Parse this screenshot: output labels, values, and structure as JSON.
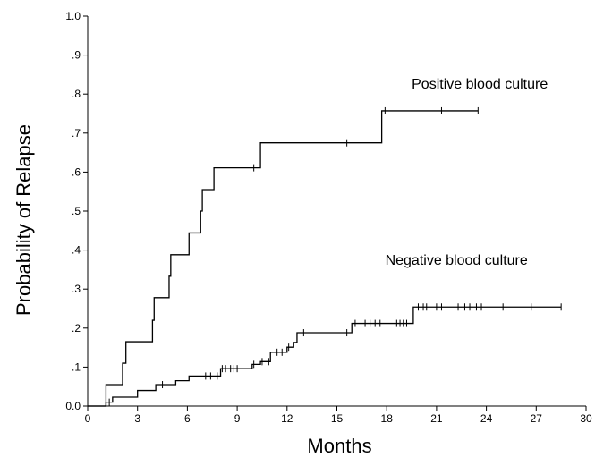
{
  "chart_data": {
    "type": "line",
    "step": true,
    "xlabel": "Months",
    "ylabel": "Probability of Relapse",
    "xlim": [
      0,
      30
    ],
    "ylim": [
      0,
      1.0
    ],
    "xticks": [
      0,
      3,
      6,
      9,
      12,
      15,
      18,
      21,
      24,
      27,
      30
    ],
    "xtick_labels": [
      "0",
      "3",
      "6",
      "9",
      "12",
      "15",
      "18",
      "21",
      "24",
      "27",
      "30"
    ],
    "yticks": [
      0,
      0.1,
      0.2,
      0.3,
      0.4,
      0.5,
      0.6,
      0.7,
      0.8,
      0.9,
      1.0
    ],
    "ytick_labels": [
      "0.0",
      ".1",
      ".2",
      ".3",
      ".4",
      ".5",
      ".6",
      ".7",
      ".8",
      ".9",
      "1.0"
    ],
    "grid": false,
    "legend": "none",
    "series": [
      {
        "label": "Positive blood culture",
        "steps": [
          [
            0,
            0
          ],
          [
            1.1,
            0.055
          ],
          [
            2.1,
            0.11
          ],
          [
            2.3,
            0.165
          ],
          [
            3.9,
            0.22
          ],
          [
            4.0,
            0.278
          ],
          [
            4.9,
            0.333
          ],
          [
            5.0,
            0.388
          ],
          [
            6.1,
            0.444
          ],
          [
            6.8,
            0.5
          ],
          [
            6.9,
            0.555
          ],
          [
            7.6,
            0.611
          ],
          [
            10.4,
            0.675
          ],
          [
            17.7,
            0.757
          ]
        ],
        "end_x": 23.5,
        "censored_x": [
          10.0,
          15.6,
          17.9,
          21.3,
          23.5
        ],
        "label_position": "upper-right"
      },
      {
        "label": "Negative blood culture",
        "steps": [
          [
            0,
            0
          ],
          [
            1.1,
            0.01
          ],
          [
            1.5,
            0.023
          ],
          [
            3.0,
            0.04
          ],
          [
            4.1,
            0.055
          ],
          [
            5.3,
            0.065
          ],
          [
            6.1,
            0.077
          ],
          [
            8.0,
            0.096
          ],
          [
            9.9,
            0.107
          ],
          [
            10.4,
            0.114
          ],
          [
            11.0,
            0.138
          ],
          [
            12.0,
            0.151
          ],
          [
            12.4,
            0.163
          ],
          [
            12.6,
            0.188
          ],
          [
            15.9,
            0.212
          ],
          [
            19.6,
            0.254
          ]
        ],
        "end_x": 28.5,
        "censored_x": [
          1.3,
          4.5,
          7.1,
          7.4,
          7.8,
          8.1,
          8.3,
          8.6,
          8.8,
          9.0,
          10.0,
          10.5,
          10.9,
          11.4,
          11.7,
          12.1,
          13.0,
          15.6,
          16.1,
          16.7,
          17.0,
          17.3,
          17.6,
          18.6,
          18.8,
          19.0,
          19.2,
          19.9,
          20.2,
          20.4,
          21.0,
          21.3,
          22.3,
          22.7,
          23.0,
          23.4,
          23.7,
          25.0,
          26.7,
          28.5
        ],
        "label_position": "lower-right"
      }
    ]
  }
}
